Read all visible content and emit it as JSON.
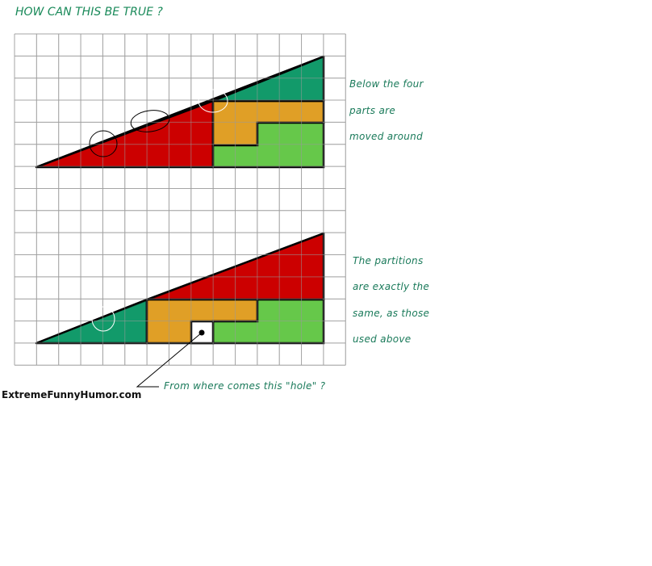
{
  "title": "HOW CAN THIS BE TRUE ?",
  "notes_top": [
    "Below the four",
    "parts are",
    "moved around"
  ],
  "notes_bottom": [
    "The partitions",
    "are exactly the",
    "same, as those",
    "used above"
  ],
  "hole_caption": "From where comes this \"hole\" ?",
  "brand": "ExtremeFunnyHumor.com",
  "colors": {
    "title": "#1a8a5a",
    "red": "#cc0000",
    "teal": "#129a6a",
    "orange": "#e09f26",
    "green": "#66c84a",
    "grid": "#b4b4b4"
  }
}
